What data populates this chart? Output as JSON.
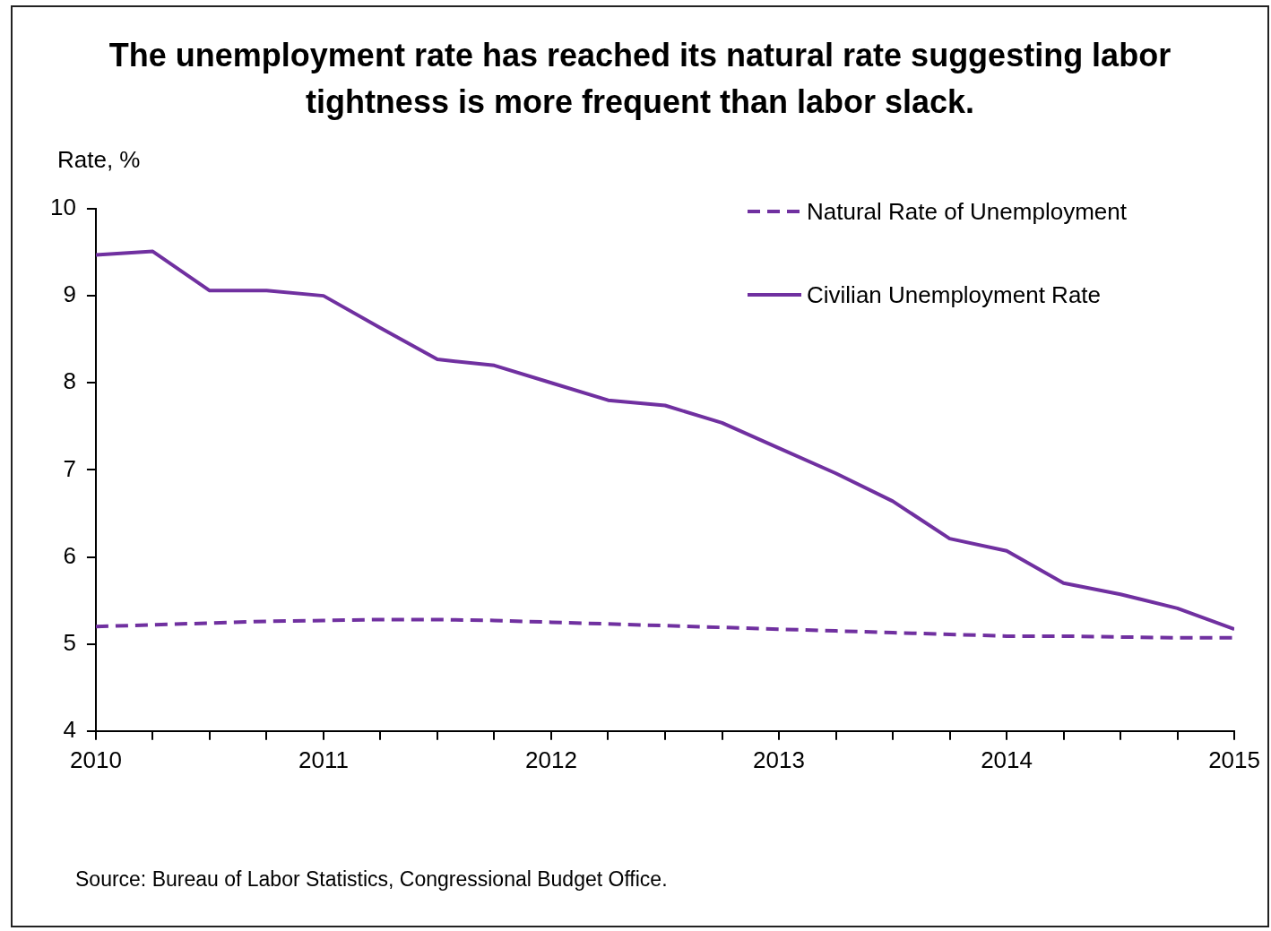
{
  "chart_data": {
    "type": "line",
    "title": "The unemployment rate has reached its natural rate suggesting labor tightness is more frequent than labor slack.",
    "ylabel": "Rate, %",
    "x": [
      2010,
      2010.25,
      2010.5,
      2010.75,
      2011,
      2011.25,
      2011.5,
      2011.75,
      2012,
      2012.25,
      2012.5,
      2012.75,
      2013,
      2013.25,
      2013.5,
      2013.75,
      2014,
      2014.25,
      2014.5,
      2014.75,
      2015
    ],
    "series": [
      {
        "name": "Natural Rate of Unemployment",
        "color": "#7030a0",
        "line_style": "dashed",
        "values": [
          5.2,
          5.22,
          5.24,
          5.26,
          5.27,
          5.28,
          5.28,
          5.27,
          5.25,
          5.23,
          5.21,
          5.19,
          5.17,
          5.15,
          5.13,
          5.11,
          5.09,
          5.09,
          5.08,
          5.07,
          5.07
        ]
      },
      {
        "name": "Civilian Unemployment Rate",
        "color": "#7030a0",
        "line_style": "solid",
        "values": [
          9.47,
          9.51,
          9.06,
          9.06,
          9.0,
          8.63,
          8.27,
          8.2,
          8.0,
          7.8,
          7.74,
          7.54,
          7.25,
          6.96,
          6.64,
          6.21,
          6.07,
          5.7,
          5.57,
          5.41,
          5.17
        ]
      }
    ],
    "xlim": [
      2010,
      2015
    ],
    "xticks": [
      2010,
      {
        "value": 2010.25,
        "label": null
      },
      {
        "value": 2010.5,
        "label": null
      },
      {
        "value": 2010.75,
        "label": null
      },
      2011,
      {
        "value": 2011.25,
        "label": null
      },
      {
        "value": 2011.5,
        "label": null
      },
      {
        "value": 2011.75,
        "label": null
      },
      2012,
      {
        "value": 2012.25,
        "label": null
      },
      {
        "value": 2012.5,
        "label": null
      },
      {
        "value": 2012.75,
        "label": null
      },
      2013,
      {
        "value": 2013.25,
        "label": null
      },
      {
        "value": 2013.5,
        "label": null
      },
      {
        "value": 2013.75,
        "label": null
      },
      2014,
      {
        "value": 2014.25,
        "label": null
      },
      {
        "value": 2014.5,
        "label": null
      },
      {
        "value": 2014.75,
        "label": null
      },
      2015
    ],
    "ylim": [
      4,
      10
    ],
    "yticks": [
      4,
      5,
      6,
      7,
      8,
      9,
      10
    ],
    "grid": false,
    "legend": "top right",
    "marker": "none",
    "annotations": [
      "Source: Bureau of Labor Statistics, Congressional Budget Office."
    ]
  }
}
